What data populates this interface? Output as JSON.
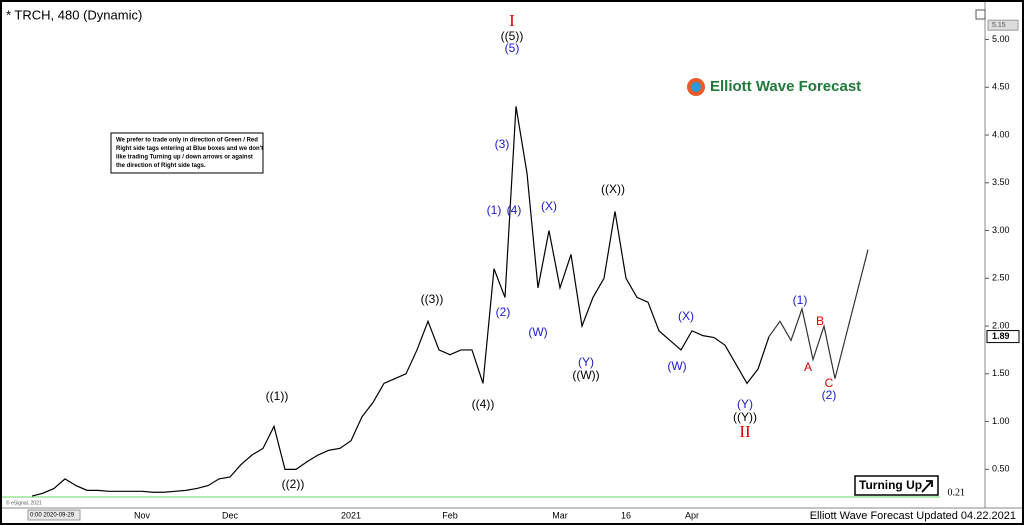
{
  "chart_data": {
    "type": "line",
    "title": "* TRCH, 480 (Dynamic)",
    "footer": "Elliott Wave Forecast Updated 04.22.2021",
    "copyright": "© eSignal, 2021",
    "logo": "Elliott Wave Forecast",
    "badge": "Turning Up",
    "note": [
      "We prefer to trade only in direction of Green / Red",
      "Right side tags entering at Blue boxes and we don't",
      "like trading Turning up / down arrows or against",
      "the direction of Right side tags."
    ],
    "categories": [
      "0:00 2020-09-29",
      null,
      null,
      null,
      null,
      null,
      null,
      null,
      null,
      null,
      "Nov",
      null,
      null,
      null,
      null,
      null,
      null,
      null,
      "Dec",
      null,
      null,
      null,
      null,
      null,
      null,
      null,
      null,
      null,
      null,
      "2021",
      null,
      null,
      null,
      null,
      null,
      null,
      null,
      null,
      "Feb",
      null,
      null,
      null,
      null,
      null,
      null,
      null,
      null,
      null,
      "Mar",
      null,
      null,
      null,
      null,
      null,
      "16",
      null,
      null,
      null,
      null,
      null,
      "Apr",
      null,
      null,
      null,
      null,
      null,
      null,
      null,
      null,
      null,
      null,
      null,
      null,
      null,
      null,
      null,
      null
    ],
    "series": [
      {
        "name": "TRCH",
        "color": "#000000",
        "values": [
          0.22,
          0.25,
          0.3,
          0.4,
          0.33,
          0.28,
          0.28,
          0.27,
          0.27,
          0.27,
          0.27,
          0.26,
          0.26,
          0.27,
          0.28,
          0.3,
          0.33,
          0.4,
          0.42,
          0.55,
          0.65,
          0.72,
          0.95,
          0.5,
          0.5,
          0.58,
          0.65,
          0.7,
          0.72,
          0.8,
          1.05,
          1.2,
          1.4,
          1.45,
          1.5,
          1.75,
          2.05,
          1.75,
          1.7,
          1.75,
          1.75,
          1.4,
          2.6,
          2.3,
          4.3,
          3.6,
          2.4,
          3.0,
          2.4,
          2.75,
          2.0,
          2.3,
          2.5,
          3.2,
          2.5,
          2.3,
          2.25,
          1.95,
          1.85,
          1.75,
          1.95,
          1.9,
          1.88,
          1.8,
          1.6,
          1.4,
          1.55,
          1.89,
          null,
          null,
          null,
          null,
          null,
          null,
          null,
          null,
          null
        ]
      },
      {
        "name": "Projection",
        "color": "#333333",
        "values": [
          null,
          null,
          null,
          null,
          null,
          null,
          null,
          null,
          null,
          null,
          null,
          null,
          null,
          null,
          null,
          null,
          null,
          null,
          null,
          null,
          null,
          null,
          null,
          null,
          null,
          null,
          null,
          null,
          null,
          null,
          null,
          null,
          null,
          null,
          null,
          null,
          null,
          null,
          null,
          null,
          null,
          null,
          null,
          null,
          null,
          null,
          null,
          null,
          null,
          null,
          null,
          null,
          null,
          null,
          null,
          null,
          null,
          null,
          null,
          null,
          null,
          null,
          null,
          null,
          null,
          null,
          null,
          1.89,
          2.05,
          1.85,
          2.18,
          1.65,
          2.0,
          1.45,
          1.9,
          2.35,
          2.8
        ]
      }
    ],
    "ylim": [
      0.2,
      5.33
    ],
    "yticks": [
      {
        "value": 0.5,
        "label": "0.50"
      },
      {
        "value": 1,
        "label": "1.00"
      },
      {
        "value": 1.5,
        "label": "1.50"
      },
      {
        "value": 2,
        "label": "2.00"
      },
      {
        "value": 2.5,
        "label": "2.50"
      },
      {
        "value": 3,
        "label": "3.00"
      },
      {
        "value": 3.5,
        "label": "3.50"
      },
      {
        "value": 4,
        "label": "4.00"
      },
      {
        "value": 4.5,
        "label": "4.50"
      },
      {
        "value": 5,
        "label": "5.00"
      }
    ],
    "y_top_marker": 5.15,
    "reference_line": {
      "value": 0.21,
      "label": "0.21",
      "color": "#98e698"
    },
    "annotations": [
      {
        "text": "I",
        "color": "#e00000"
      },
      {
        "text": "((5))",
        "color": "#000000"
      },
      {
        "text": "(5)",
        "color": "#1a1acc"
      },
      {
        "text": "(3)",
        "color": "#1a1acc"
      },
      {
        "text": "(1)",
        "color": "#1a1acc"
      },
      {
        "text": "(4)",
        "color": "#1a1acc"
      },
      {
        "text": "(X)",
        "color": "#1a1acc"
      },
      {
        "text": "((X))",
        "color": "#000000"
      },
      {
        "text": "(W)",
        "color": "#1a1acc"
      },
      {
        "text": "(2)",
        "color": "#1a1acc"
      },
      {
        "text": "((3))",
        "color": "#000000"
      },
      {
        "text": "((4))",
        "color": "#000000"
      },
      {
        "text": "((1))",
        "color": "#000000"
      },
      {
        "text": "((2))",
        "color": "#000000"
      },
      {
        "text": "(Y)",
        "color": "#1a1acc"
      },
      {
        "text": "((W))",
        "color": "#000000"
      },
      {
        "text": "(X)",
        "color": "#1a1acc"
      },
      {
        "text": "(W)",
        "color": "#1a1acc"
      },
      {
        "text": "(Y)",
        "color": "#1a1acc"
      },
      {
        "text": "((Y))",
        "color": "#000000"
      },
      {
        "text": "II",
        "color": "#e00000"
      },
      {
        "text": "(1)",
        "color": "#1a1acc"
      },
      {
        "text": "B",
        "color": "#e00000"
      },
      {
        "text": "A",
        "color": "#e00000"
      },
      {
        "text": "C",
        "color": "#e00000"
      },
      {
        "text": "(2)",
        "color": "#1a1acc"
      }
    ]
  }
}
